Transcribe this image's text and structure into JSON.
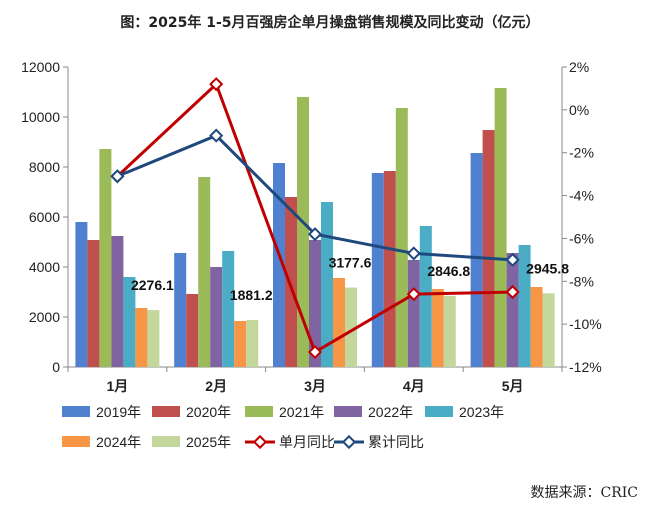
{
  "chart_data": {
    "type": "bar",
    "title": "图：2025年 1-5月百强房企单月操盘销售规模及同比变动（亿元）",
    "categories": [
      "1月",
      "2月",
      "3月",
      "4月",
      "5月"
    ],
    "ylim": [
      0,
      12000
    ],
    "yticks": [
      "0",
      "2000",
      "4000",
      "6000",
      "8000",
      "10000",
      "12000"
    ],
    "y2lim": [
      -12,
      2
    ],
    "y2ticks": [
      "-12%",
      "-10%",
      "-8%",
      "-6%",
      "-4%",
      "-2%",
      "0%",
      "2%"
    ],
    "series": [
      {
        "name": "2019年",
        "type": "bar",
        "color": "#4f81d0",
        "values": [
          5800,
          4560,
          8160,
          7760,
          8560
        ]
      },
      {
        "name": "2020年",
        "type": "bar",
        "color": "#c0504d",
        "values": [
          5080,
          2920,
          6800,
          7840,
          9480
        ]
      },
      {
        "name": "2021年",
        "type": "bar",
        "color": "#9bbb59",
        "values": [
          8720,
          7600,
          10800,
          10360,
          11160
        ]
      },
      {
        "name": "2022年",
        "type": "bar",
        "color": "#8064a2",
        "values": [
          5240,
          4000,
          5080,
          4280,
          4560
        ]
      },
      {
        "name": "2023年",
        "type": "bar",
        "color": "#4bacc6",
        "values": [
          3600,
          4640,
          6600,
          5640,
          4880
        ]
      },
      {
        "name": "2024年",
        "type": "bar",
        "color": "#f79646",
        "values": [
          2360,
          1840,
          3560,
          3120,
          3200
        ]
      },
      {
        "name": "2025年",
        "type": "bar",
        "color": "#c3d69b",
        "values": [
          2276.1,
          1881.2,
          3177.6,
          2846.8,
          2945.8
        ]
      },
      {
        "name": "单月同比",
        "type": "line",
        "axis": "right",
        "color": "#c00000",
        "values": [
          -3.1,
          1.2,
          -11.3,
          -8.6,
          -8.5
        ]
      },
      {
        "name": "累计同比",
        "type": "line",
        "axis": "right",
        "color": "#1f497d",
        "values": [
          -3.1,
          -1.2,
          -5.8,
          -6.7,
          -7.0
        ]
      }
    ],
    "data_labels": [
      "2276.1",
      "1881.2",
      "3177.6",
      "2846.8",
      "2945.8"
    ],
    "legend": "bottom",
    "grid": false
  },
  "source": "数据来源：CRIC"
}
